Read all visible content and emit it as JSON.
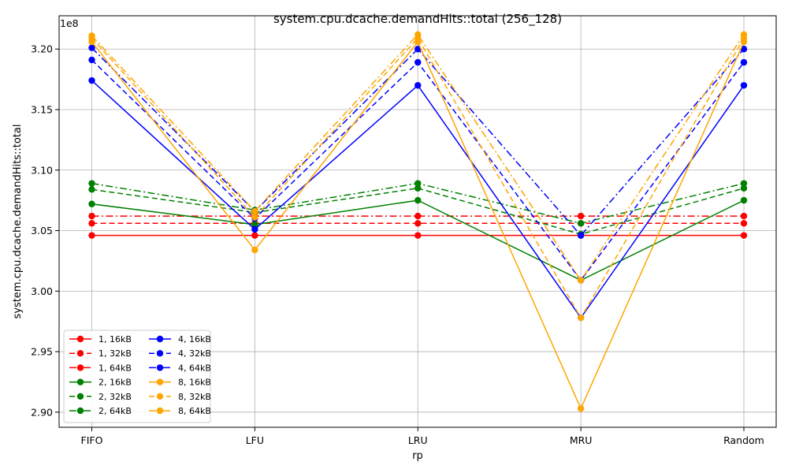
{
  "chart_data": {
    "type": "line",
    "title": "system.cpu.dcache.demandHits::total (256_128)",
    "xlabel": "rp",
    "ylabel": "system.cpu.dcache.demandHits::total",
    "offset_label": "1e8",
    "categories": [
      "FIFO",
      "LFU",
      "LRU",
      "MRU",
      "Random"
    ],
    "ylim": [
      2.8875,
      3.2275
    ],
    "yticks": [
      2.9,
      2.95,
      3.0,
      3.05,
      3.1,
      3.15,
      3.2
    ],
    "ytick_labels": [
      "2.90",
      "2.95",
      "3.00",
      "3.05",
      "3.10",
      "3.15",
      "3.20"
    ],
    "grid": true,
    "legend_position": "lower-left",
    "legend_columns": 2,
    "series": [
      {
        "name": "1, 16kB",
        "color": "#ff0000",
        "dash": "solid",
        "values": [
          3.046,
          3.046,
          3.046,
          3.046,
          3.046
        ]
      },
      {
        "name": "1, 32kB",
        "color": "#ff0000",
        "dash": "dashed",
        "values": [
          3.056,
          3.056,
          3.056,
          3.056,
          3.056
        ]
      },
      {
        "name": "1, 64kB",
        "color": "#ff0000",
        "dash": "dashdot",
        "values": [
          3.062,
          3.062,
          3.062,
          3.062,
          3.062
        ]
      },
      {
        "name": "2, 16kB",
        "color": "#008000",
        "dash": "solid",
        "values": [
          3.072,
          3.055,
          3.075,
          3.009,
          3.075
        ]
      },
      {
        "name": "2, 32kB",
        "color": "#008000",
        "dash": "dashed",
        "values": [
          3.084,
          3.065,
          3.085,
          3.047,
          3.085
        ]
      },
      {
        "name": "2, 64kB",
        "color": "#008000",
        "dash": "dashdot",
        "values": [
          3.089,
          3.067,
          3.089,
          3.056,
          3.089
        ]
      },
      {
        "name": "4, 16kB",
        "color": "#0000ff",
        "dash": "solid",
        "values": [
          3.174,
          3.051,
          3.17,
          2.978,
          3.17
        ]
      },
      {
        "name": "4, 32kB",
        "color": "#0000ff",
        "dash": "dashed",
        "values": [
          3.191,
          3.06,
          3.189,
          3.009,
          3.189
        ]
      },
      {
        "name": "4, 64kB",
        "color": "#0000ff",
        "dash": "dashdot",
        "values": [
          3.201,
          3.066,
          3.2,
          3.046,
          3.2
        ]
      },
      {
        "name": "8, 16kB",
        "color": "#ffa500",
        "dash": "solid",
        "values": [
          3.206,
          3.034,
          3.206,
          2.903,
          3.206
        ]
      },
      {
        "name": "8, 32kB",
        "color": "#ffa500",
        "dash": "dashed",
        "values": [
          3.209,
          3.061,
          3.209,
          2.978,
          3.209
        ]
      },
      {
        "name": "8, 64kB",
        "color": "#ffa500",
        "dash": "dashdot",
        "values": [
          3.211,
          3.066,
          3.212,
          3.009,
          3.212
        ]
      }
    ]
  }
}
